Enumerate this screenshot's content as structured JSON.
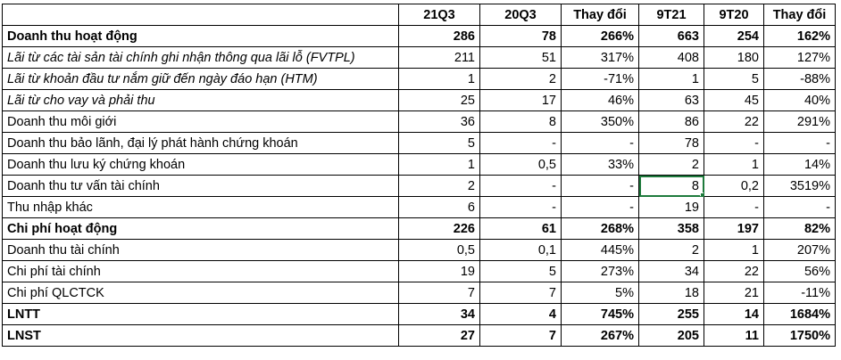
{
  "columns": [
    "",
    "21Q3",
    "20Q3",
    "Thay đổi",
    "9T21",
    "9T20",
    "Thay đổi"
  ],
  "rows": [
    {
      "label": "Doanh thu hoạt động",
      "style": "bold",
      "cells": [
        "286",
        "78",
        "266%",
        "663",
        "254",
        "162%"
      ]
    },
    {
      "label": "Lãi từ các tài sản tài chính ghi nhận thông qua lãi lỗ (FVTPL)",
      "style": "italic",
      "cells": [
        "211",
        "51",
        "317%",
        "408",
        "180",
        "127%"
      ]
    },
    {
      "label": "Lãi từ khoản đầu tư nắm giữ đến ngày đáo hạn (HTM)",
      "style": "italic",
      "cells": [
        "1",
        "2",
        "-71%",
        "1",
        "5",
        "-88%"
      ]
    },
    {
      "label": "Lãi từ cho vay và phải thu",
      "style": "italic",
      "cells": [
        "25",
        "17",
        "46%",
        "63",
        "45",
        "40%"
      ]
    },
    {
      "label": "Doanh thu môi giới",
      "style": "normal",
      "cells": [
        "36",
        "8",
        "350%",
        "86",
        "22",
        "291%"
      ]
    },
    {
      "label": "Doanh thu bảo lãnh, đại lý phát hành chứng khoán",
      "style": "normal",
      "cells": [
        "5",
        "-",
        "-",
        "78",
        "-",
        "-"
      ]
    },
    {
      "label": "Doanh thu lưu ký chứng khoán",
      "style": "normal",
      "cells": [
        "1",
        "0,5",
        "33%",
        "2",
        "1",
        "14%"
      ]
    },
    {
      "label": "Doanh thu tư vấn tài chính",
      "style": "normal",
      "cells": [
        "2",
        "-",
        "-",
        "8",
        "0,2",
        "3519%"
      ]
    },
    {
      "label": "Thu nhập khác",
      "style": "normal",
      "cells": [
        "6",
        "-",
        "-",
        "19",
        "-",
        "-"
      ]
    },
    {
      "label": "Chi phí hoạt động",
      "style": "bold",
      "cells": [
        "226",
        "61",
        "268%",
        "358",
        "197",
        "82%"
      ]
    },
    {
      "label": "Doanh thu tài chính",
      "style": "normal",
      "cells": [
        "0,5",
        "0,1",
        "445%",
        "2",
        "1",
        "207%"
      ]
    },
    {
      "label": "Chi phí tài chính",
      "style": "normal",
      "cells": [
        "19",
        "5",
        "273%",
        "34",
        "22",
        "56%"
      ]
    },
    {
      "label": "Chi phí QLCTCK",
      "style": "normal",
      "cells": [
        "7",
        "7",
        "5%",
        "18",
        "21",
        "-11%"
      ]
    },
    {
      "label": "LNTT",
      "style": "bold",
      "cells": [
        "34",
        "4",
        "745%",
        "255",
        "14",
        "1684%"
      ]
    },
    {
      "label": "LNST",
      "style": "bold",
      "cells": [
        "27",
        "7",
        "267%",
        "205",
        "11",
        "1750%"
      ]
    }
  ],
  "selected_cell": {
    "row": 7,
    "col": 4
  }
}
